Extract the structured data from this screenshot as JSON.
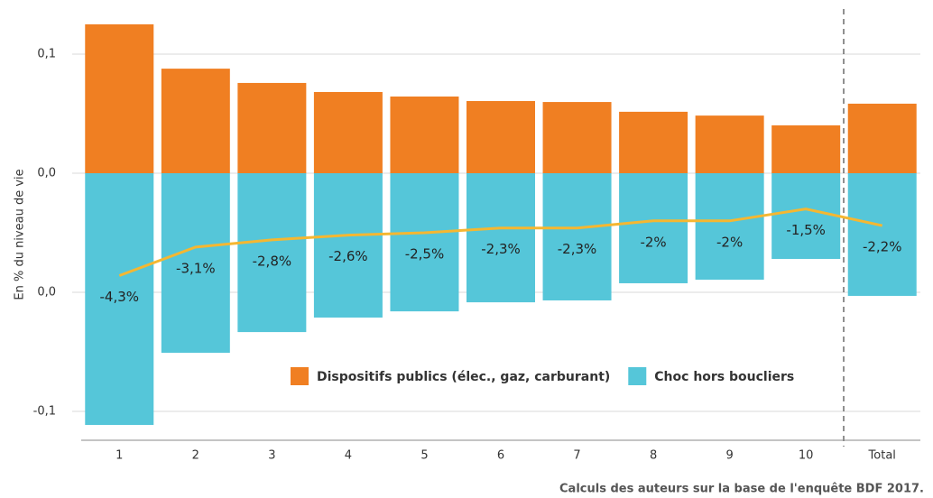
{
  "chart_data": {
    "type": "bar",
    "y_label": "En % du niveau de vie",
    "source": "Calculs des auteurs sur la base de l'enquête BDF 2017.",
    "categories": [
      "1",
      "2",
      "3",
      "4",
      "5",
      "6",
      "7",
      "8",
      "9",
      "10",
      "Total"
    ],
    "series": [
      {
        "name": "Dispositifs publics (élec., gaz, carburant)",
        "color": "#f07f22",
        "type": "bar",
        "values": [
          0.0625,
          0.0439,
          0.0379,
          0.0341,
          0.0322,
          0.0303,
          0.0299,
          0.0258,
          0.0242,
          0.0201,
          0.0292
        ]
      },
      {
        "name": "Choc hors boucliers",
        "color": "#55c6d9",
        "type": "bar",
        "values": [
          -0.1057,
          -0.0754,
          -0.0667,
          -0.0606,
          -0.058,
          -0.0542,
          -0.0534,
          -0.0462,
          -0.0447,
          -0.036,
          -0.0515
        ]
      },
      {
        "color": "#f5b731",
        "type": "line",
        "values": [
          -0.043,
          -0.031,
          -0.028,
          -0.026,
          -0.025,
          -0.023,
          -0.023,
          -0.02,
          -0.02,
          -0.015,
          -0.022
        ],
        "value_labels": [
          "-4,3%",
          "-3,1%",
          "-2,8%",
          "-2,6%",
          "-2,5%",
          "-2,3%",
          "-2,3%",
          "-2%",
          "-2%",
          "-1,5%",
          "-2,2%"
        ]
      }
    ],
    "ylim": [
      -0.11,
      0.07
    ],
    "yticks": [
      {
        "value": 0.05,
        "label": "0,1"
      },
      {
        "value": 0,
        "label": "0,0"
      },
      {
        "value": -0.05,
        "label": "0,0"
      },
      {
        "value": -0.1,
        "label": "-0,1"
      }
    ],
    "grid": true
  }
}
